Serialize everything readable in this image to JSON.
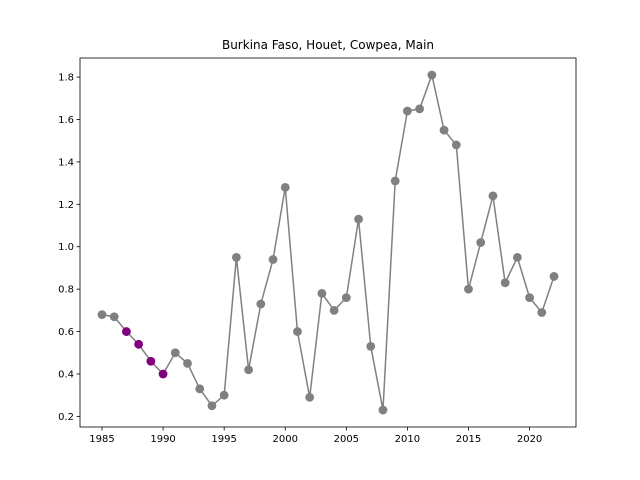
{
  "chart_data": {
    "type": "line",
    "title": "Burkina Faso, Houet, Cowpea, Main",
    "xlabel": "",
    "ylabel": "",
    "xlim": [
      1983.2,
      2023.8
    ],
    "ylim": [
      0.15,
      1.89
    ],
    "x_ticks": [
      1985,
      1990,
      1995,
      2000,
      2005,
      2010,
      2015,
      2020
    ],
    "y_ticks": [
      0.2,
      0.4,
      0.6,
      0.8,
      1.0,
      1.2,
      1.4,
      1.6,
      1.8
    ],
    "y_tick_labels": [
      "0.2",
      "0.4",
      "0.6",
      "0.8",
      "1.0",
      "1.2",
      "1.4",
      "1.6",
      "1.8"
    ],
    "grid": false,
    "line_color": "#808080",
    "highlight_color": "#800080",
    "highlighted_years": [
      1987,
      1988,
      1989,
      1990
    ],
    "x": [
      1985,
      1986,
      1987,
      1988,
      1989,
      1990,
      1991,
      1992,
      1993,
      1994,
      1995,
      1996,
      1997,
      1998,
      1999,
      2000,
      2001,
      2002,
      2003,
      2004,
      2005,
      2006,
      2007,
      2008,
      2009,
      2010,
      2011,
      2012,
      2013,
      2014,
      2015,
      2016,
      2017,
      2018,
      2019,
      2020,
      2021,
      2022
    ],
    "values": [
      0.68,
      0.67,
      0.6,
      0.54,
      0.46,
      0.4,
      0.5,
      0.45,
      0.33,
      0.25,
      0.3,
      0.95,
      0.42,
      0.73,
      0.94,
      1.28,
      0.6,
      0.29,
      0.78,
      0.7,
      0.76,
      1.13,
      0.53,
      0.23,
      1.31,
      1.64,
      1.65,
      1.81,
      1.55,
      1.48,
      0.8,
      1.02,
      1.24,
      0.83,
      0.95,
      0.76,
      0.69,
      0.86
    ]
  }
}
